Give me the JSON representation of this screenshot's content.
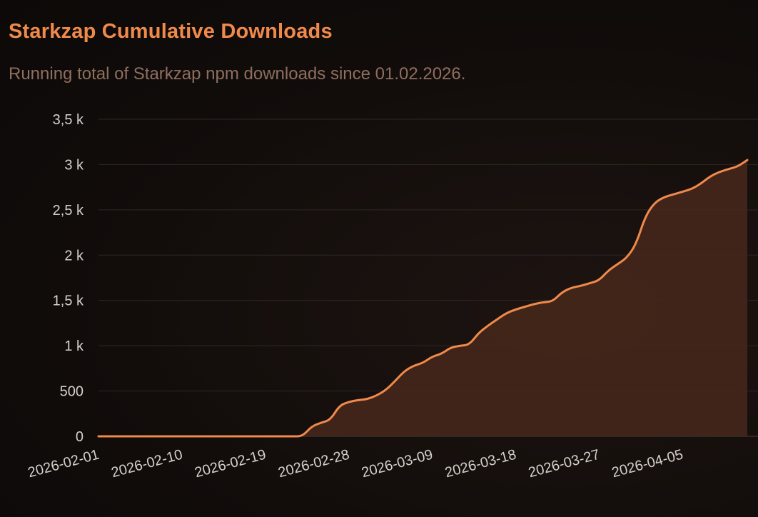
{
  "chart_data": {
    "type": "area",
    "title": "Starkzap Cumulative Downloads",
    "subtitle": "Running total of Starkzap npm downloads since 01.02.2026.",
    "xlabel": "",
    "ylabel": "",
    "ylim": [
      0,
      3500
    ],
    "yticks": [
      0,
      500,
      1000,
      1500,
      2000,
      2500,
      3000,
      3500
    ],
    "ytick_labels": [
      "0",
      "500",
      "1 k",
      "1,5 k",
      "2 k",
      "2,5 k",
      "3 k",
      "3,5 k"
    ],
    "xlim": [
      "2026-02-01",
      "2026-04-12"
    ],
    "xticks": [
      "2026-02-01",
      "2026-02-10",
      "2026-02-19",
      "2026-02-28",
      "2026-03-09",
      "2026-03-18",
      "2026-03-27",
      "2026-04-05"
    ],
    "grid": "horizontal",
    "legend": "none",
    "line_color": "#f08a4b",
    "fill_color": "#43261a",
    "series": [
      {
        "name": "",
        "x": [
          "2026-02-01",
          "2026-02-02",
          "2026-02-03",
          "2026-02-04",
          "2026-02-05",
          "2026-02-06",
          "2026-02-07",
          "2026-02-08",
          "2026-02-09",
          "2026-02-10",
          "2026-02-11",
          "2026-02-12",
          "2026-02-13",
          "2026-02-14",
          "2026-02-15",
          "2026-02-16",
          "2026-02-17",
          "2026-02-18",
          "2026-02-19",
          "2026-02-20",
          "2026-02-21",
          "2026-02-22",
          "2026-02-23",
          "2026-02-24",
          "2026-02-25",
          "2026-02-26",
          "2026-02-27",
          "2026-02-28",
          "2026-03-01",
          "2026-03-02",
          "2026-03-03",
          "2026-03-04",
          "2026-03-05",
          "2026-03-06",
          "2026-03-07",
          "2026-03-08",
          "2026-03-09",
          "2026-03-10",
          "2026-03-11",
          "2026-03-12",
          "2026-03-13",
          "2026-03-14",
          "2026-03-15",
          "2026-03-16",
          "2026-03-17",
          "2026-03-18",
          "2026-03-19",
          "2026-03-20",
          "2026-03-21",
          "2026-03-22",
          "2026-03-23",
          "2026-03-24",
          "2026-03-25",
          "2026-03-26",
          "2026-03-27",
          "2026-03-28",
          "2026-03-29",
          "2026-03-30",
          "2026-03-31",
          "2026-04-01",
          "2026-04-02",
          "2026-04-03",
          "2026-04-04",
          "2026-04-05",
          "2026-04-06",
          "2026-04-07",
          "2026-04-08",
          "2026-04-09",
          "2026-04-10",
          "2026-04-11",
          "2026-04-12"
        ],
        "values": [
          0,
          0,
          0,
          0,
          0,
          0,
          0,
          0,
          0,
          0,
          0,
          0,
          0,
          0,
          0,
          0,
          0,
          0,
          0,
          0,
          0,
          0,
          0,
          110,
          150,
          180,
          340,
          380,
          400,
          410,
          450,
          510,
          610,
          720,
          780,
          810,
          880,
          910,
          980,
          1000,
          1010,
          1140,
          1220,
          1290,
          1360,
          1400,
          1430,
          1460,
          1480,
          1490,
          1590,
          1640,
          1660,
          1690,
          1720,
          1830,
          1900,
          1970,
          2120,
          2430,
          2580,
          2640,
          2670,
          2700,
          2730,
          2790,
          2870,
          2920,
          2950,
          2980,
          3050
        ]
      }
    ]
  }
}
